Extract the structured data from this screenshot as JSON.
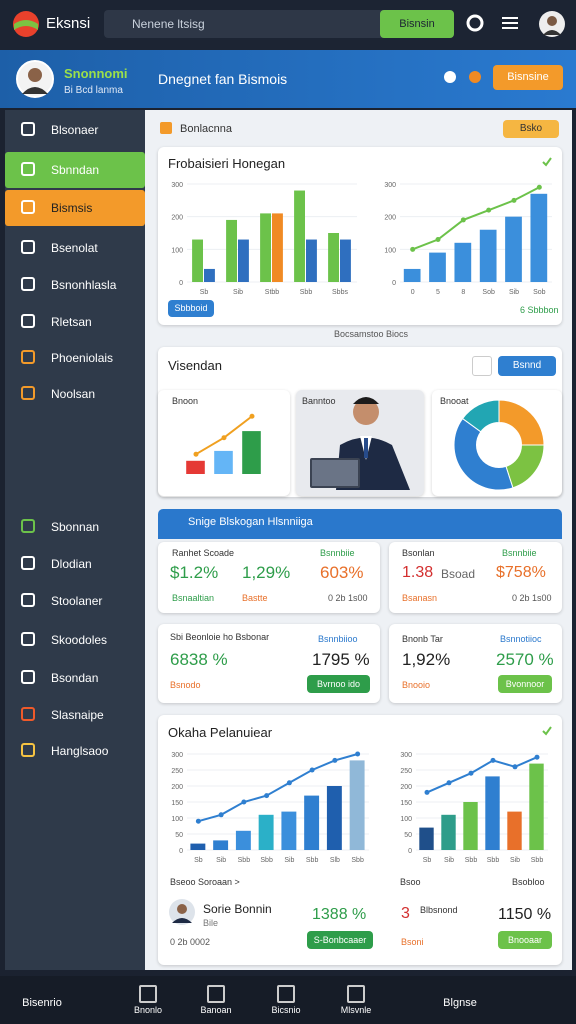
{
  "topbar": {
    "logo": "Eksnsi",
    "search_placeholder": "Nenene ltsisg",
    "search_button": "Bisnsin"
  },
  "header": {
    "user_name": "Snonnomi",
    "user_subtitle": "Bi Bcd lanma",
    "title": "Dnegnet fan Bismois",
    "button": "Bisnsine"
  },
  "sidebar": {
    "items": [
      "Blsonaer",
      "Sbnndan",
      "Bismsis",
      "Bsenolat",
      "Bsnonhlasla",
      "Rletsan",
      "Phoeniolais",
      "Noolsan",
      "Sbonnan",
      "Dlodian",
      "Stoolaner",
      "Skoodoles",
      "Bsondan",
      "Slasnaipe",
      "Hanglsaoo"
    ]
  },
  "toolbar": {
    "tab": "Bonlacnna",
    "button": "Bsko"
  },
  "overview": {
    "title": "Frobaisieri Honegan",
    "button": "Sbbboid",
    "link": "6 Sbbbon",
    "caption": "Bocsamstoo Biocs",
    "chart_left": {
      "type": "combo",
      "ylim": [
        0,
        300
      ],
      "yticks": [
        0,
        100,
        200,
        300
      ],
      "categories": [
        "Sb",
        "Sib",
        "Stbb",
        "Sbb",
        "Sbbs"
      ],
      "series": [
        {
          "kind": "bar",
          "color": "#6cc24a",
          "values": [
            130,
            190,
            210,
            280,
            150
          ]
        },
        {
          "kind": "bar",
          "color": "#2f6fbf",
          "values": [
            40,
            130,
            210,
            130,
            130
          ],
          "colors": [
            "#2f6fbf",
            "#2f6fbf",
            "#f08a24",
            "#2f6fbf",
            "#2f6fbf"
          ]
        }
      ]
    },
    "chart_right": {
      "type": "combo",
      "ylim": [
        0,
        300
      ],
      "yticks": [
        0,
        100,
        200,
        300
      ],
      "categories": [
        "0",
        "5",
        "8",
        "Sob",
        "Sib",
        "Sob"
      ],
      "series": [
        {
          "kind": "bar",
          "color": "#3b8fdc",
          "values": [
            40,
            90,
            120,
            160,
            200,
            270
          ]
        },
        {
          "kind": "line",
          "color": "#6cc24a",
          "values": [
            100,
            130,
            190,
            220,
            250,
            290
          ]
        }
      ]
    }
  },
  "visuals": {
    "title": "Visendan",
    "button": "Bsnnd",
    "chart_title": "Bnoon",
    "photo_title": "Banntoo",
    "donut_title": "Bnooat",
    "chart": {
      "type": "combo",
      "ylim": [
        0,
        200
      ],
      "series": [
        {
          "kind": "bar",
          "color": "#3b8fdc",
          "values": [
            40,
            70,
            130
          ],
          "colors": [
            "#e53935",
            "#64b5f6",
            "#2e9d4a"
          ]
        },
        {
          "kind": "line",
          "color": "#f0a020",
          "values": [
            60,
            110,
            175
          ]
        }
      ]
    },
    "donut": {
      "type": "pie",
      "values": [
        25,
        20,
        40,
        15
      ],
      "colors": [
        "#f39a2a",
        "#7cc242",
        "#2f7fd0",
        "#22a6b3"
      ]
    }
  },
  "stats": {
    "title": "Snige Blskogan Hlsnniiga",
    "cards": [
      {
        "title": "Ranhet Scoade",
        "tag": "Bsnnbiie",
        "values": [
          "$1.2%",
          "1,29%",
          "603%"
        ],
        "footer": [
          "Bsnaaltian",
          "Bastte",
          "0 2b 1s00"
        ]
      },
      {
        "title": "Bsonlan",
        "tag": "Bsnnbiie",
        "values": [
          "1.38",
          "Bsoad",
          "$758%"
        ],
        "footer": [
          "Bsanasn",
          "0 2b 1s00"
        ]
      },
      {
        "title": "Sbi Beonloie ho Bsbonar",
        "tag": "Bsnnbiioo",
        "values": [
          "6838 %",
          "1795 %"
        ],
        "footer": [
          "Bsnodo"
        ],
        "button": "Bvrnoo ido"
      },
      {
        "title": "Bnonb Tar",
        "tag": "Bsnnotiioc",
        "values": [
          "1,92%",
          "2570 %"
        ],
        "footer": [
          "Bnooio"
        ],
        "button": "Bvonnoor"
      }
    ]
  },
  "performance": {
    "title": "Okaha Pelanuiear",
    "chart_left": {
      "type": "combo",
      "ylim": [
        0,
        300
      ],
      "yticks": [
        0,
        50,
        100,
        150,
        200,
        250,
        300
      ],
      "categories": [
        "Sb",
        "Sib",
        "Sbb",
        "Sbb",
        "Sib",
        "Sbb",
        "Slb",
        "Sbb"
      ],
      "series": [
        {
          "kind": "bar",
          "color": "#2f7fd0",
          "values": [
            20,
            30,
            60,
            110,
            120,
            170,
            200,
            280
          ],
          "colors": [
            "#1f5fae",
            "#2f7fd0",
            "#3b8fdc",
            "#2bb0c8",
            "#3b8fdc",
            "#2f7fd0",
            "#1f5fae",
            "#90b8d8"
          ]
        },
        {
          "kind": "line",
          "color": "#2f7fd0",
          "values": [
            90,
            110,
            150,
            170,
            210,
            250,
            280,
            300
          ]
        }
      ]
    },
    "chart_right": {
      "type": "combo",
      "ylim": [
        0,
        300
      ],
      "yticks": [
        0,
        50,
        100,
        150,
        200,
        250,
        300
      ],
      "categories": [
        "Sb",
        "Sib",
        "Sbb",
        "Sbb",
        "Sib",
        "Sbb"
      ],
      "series": [
        {
          "kind": "bar",
          "color": "#6cc24a",
          "values": [
            70,
            110,
            150,
            230,
            120,
            270
          ],
          "colors": [
            "#1f4f8a",
            "#2e9d8a",
            "#6cc24a",
            "#2f7fd0",
            "#e8702a",
            "#6cc24a"
          ]
        },
        {
          "kind": "line",
          "color": "#2f7fd0",
          "values": [
            180,
            210,
            240,
            280,
            260,
            290
          ]
        }
      ]
    },
    "left": {
      "link": "Bseoo Soroaan >",
      "person": "Sorie Bonnin",
      "person_sub": "Bile",
      "value": "1388 %",
      "meta": "0 2b 0002",
      "button": "S-Bonbcaaer"
    },
    "right": {
      "title": "Bsoo",
      "tag": "Bsobloo",
      "number": "3",
      "sub": "Blbsnond",
      "value": "1150 %",
      "footer": "Bsoni",
      "button": "Bnooaar"
    }
  },
  "bottom_nav": {
    "items": [
      "Bisenrio",
      "Bnonlo",
      "Banoan",
      "Bicsnio",
      "Mlsvnle",
      "Blgnse"
    ]
  }
}
